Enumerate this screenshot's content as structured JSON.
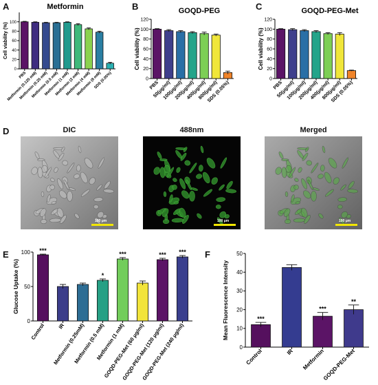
{
  "panels": {
    "A": {
      "letter": "A"
    },
    "B": {
      "letter": "B"
    },
    "C": {
      "letter": "C"
    },
    "D": {
      "letter": "D"
    },
    "E": {
      "letter": "E"
    },
    "F": {
      "letter": "F"
    }
  },
  "micrographs": [
    {
      "title": "DIC",
      "scale_label": "100 μm",
      "style": "dic"
    },
    {
      "title": "488nm",
      "scale_label": "100 μm",
      "style": "fluor"
    },
    {
      "title": "Merged",
      "scale_label": "100 μm",
      "style": "merged"
    }
  ],
  "chart_data": [
    {
      "id": "A",
      "type": "bar",
      "title": "Metformin",
      "ylabel": "Cell viability (%)",
      "ylim": [
        0,
        120
      ],
      "yticks": [
        0,
        20,
        40,
        60,
        80,
        100
      ],
      "categories": [
        "PBS",
        "Metformin (0.125 mM)",
        "Metformin (0.25 mM)",
        "Metformin (0.5 mM)",
        "Metformin (1 mM)",
        "Metformin (2 mM)",
        "Metformin (4 mM)",
        "Metformin (8 mM)",
        "SDS (0.05%)"
      ],
      "values": [
        100,
        99,
        98,
        98,
        99,
        94,
        85,
        78,
        12
      ],
      "errors": [
        1,
        1,
        1,
        1,
        1,
        2,
        2,
        2,
        2
      ],
      "colors": [
        "#5b1466",
        "#3f2d80",
        "#354a8e",
        "#2a6f94",
        "#229a8e",
        "#3fb97b",
        "#8bd24f",
        "#2a7fa3",
        "#2ab0b2"
      ]
    },
    {
      "id": "B",
      "type": "bar",
      "title": "GOQD-PEG",
      "ylabel": "Cell viability (%)",
      "ylim": [
        0,
        120
      ],
      "yticks": [
        0,
        20,
        40,
        60,
        80,
        100,
        120
      ],
      "categories": [
        "PBS",
        "50(μg/ml)",
        "100(μg/ml)",
        "200(μg/ml)",
        "400(μg/ml)",
        "800(μg/ml)",
        "SDS (0.05%)"
      ],
      "values": [
        100,
        97,
        95,
        93,
        91,
        88,
        12
      ],
      "errors": [
        1,
        2,
        2,
        2,
        3,
        2,
        3
      ],
      "colors": [
        "#5b1466",
        "#3f3f8c",
        "#2a6fa6",
        "#24a48a",
        "#7dcf55",
        "#f0e63a",
        "#f0842a"
      ]
    },
    {
      "id": "C",
      "type": "bar",
      "title": "GOQD-PEG-Met",
      "ylabel": "Cell viability (%)",
      "ylim": [
        0,
        120
      ],
      "yticks": [
        0,
        20,
        40,
        60,
        80,
        100,
        120
      ],
      "categories": [
        "PBS",
        "50(μg/ml)",
        "100(μg/ml)",
        "200(μg/ml)",
        "400(μg/ml)",
        "800(μg/ml)",
        "SDS (0.05%)"
      ],
      "values": [
        100,
        99,
        97,
        95,
        91,
        90,
        16
      ],
      "errors": [
        1,
        2,
        2,
        2,
        2,
        3,
        1
      ],
      "colors": [
        "#5b1466",
        "#3f3f8c",
        "#2a6fa6",
        "#24a48a",
        "#7dcf55",
        "#f0e63a",
        "#f0842a"
      ]
    },
    {
      "id": "E",
      "type": "bar",
      "ylabel": "Glucose Uptake (%)",
      "ylim": [
        0,
        100
      ],
      "yticks": [
        0,
        50,
        100
      ],
      "ytick_labels": [
        "0",
        "50",
        "100"
      ],
      "categories": [
        "Control",
        "IR",
        "Metformin (0.25mM)",
        "Metformin (0.5 mM)",
        "Metformin (1 mM)",
        "GOQD-PEG-Met (60 μg/ml)",
        "GOQD-PEG-Met (120 μg/ml)",
        "GOQD-PEG-Met (240 μg/ml)"
      ],
      "values": [
        96,
        50,
        53,
        59,
        90,
        55,
        89,
        93
      ],
      "errors": [
        1,
        3,
        2,
        2,
        2,
        3,
        2,
        2
      ],
      "annotations": [
        "***",
        "",
        "",
        "*",
        "***",
        "",
        "***",
        "***"
      ],
      "colors": [
        "#55105e",
        "#3b3d8a",
        "#2d6d94",
        "#26a085",
        "#72cd5b",
        "#f2e43a",
        "#5b1466",
        "#3a3f8e"
      ]
    },
    {
      "id": "F",
      "type": "bar",
      "ylabel": "Mean Fluorescence Intensity",
      "ylim": [
        0,
        50
      ],
      "yticks": [
        0,
        10,
        20,
        30,
        40,
        50
      ],
      "categories": [
        "Control",
        "IR",
        "Metformin",
        "GOQD-PEG-Met"
      ],
      "values": [
        12,
        42.5,
        16.5,
        20
      ],
      "errors": [
        1.2,
        1.5,
        2,
        2.5
      ],
      "annotations": [
        "***",
        "",
        "***",
        "**"
      ],
      "colors": [
        "#55105e",
        "#343c90",
        "#5b1466",
        "#3f3a8c"
      ]
    }
  ]
}
